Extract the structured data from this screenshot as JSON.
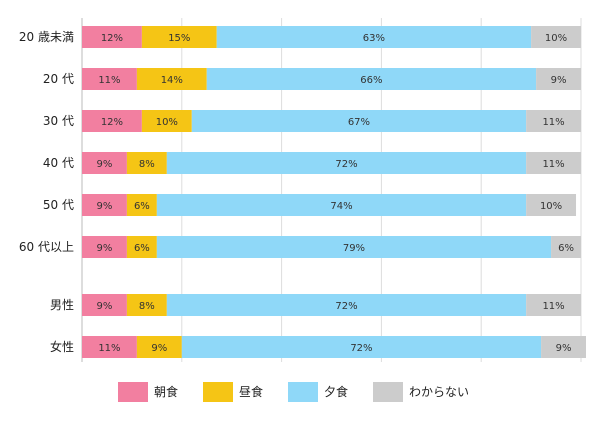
{
  "chart_data": {
    "type": "bar",
    "orientation": "horizontal",
    "stacked": true,
    "percent_stacked": true,
    "groups": [
      {
        "categories": [
          "20 歳未満",
          "20 代",
          "30 代",
          "40 代",
          "50 代",
          "60 代以上"
        ]
      },
      {
        "categories": [
          "男性",
          "女性"
        ]
      }
    ],
    "series": [
      {
        "name": "朝食",
        "color": "#f27fa0",
        "values": [
          12,
          11,
          12,
          9,
          9,
          9,
          9,
          11
        ],
        "labels": [
          "12%",
          "11%",
          "12%",
          "9%",
          "9%",
          "9%",
          "9%",
          "11%"
        ]
      },
      {
        "name": "昼食",
        "color": "#f5c515",
        "values": [
          15,
          14,
          10,
          8,
          6,
          6,
          8,
          9
        ],
        "labels": [
          "15%",
          "14%",
          "10%",
          "8%",
          "6%",
          "6%",
          "8%",
          "9%"
        ]
      },
      {
        "name": "夕食",
        "color": "#8fd8f8",
        "values": [
          63,
          66,
          67,
          72,
          74,
          79,
          72,
          72
        ],
        "labels": [
          "63%",
          "66%",
          "67%",
          "72%",
          "74%",
          "79%",
          "72%",
          "72%"
        ]
      },
      {
        "name": "わからない",
        "color": "#cccccc",
        "values": [
          10,
          9,
          11,
          11,
          10,
          6,
          11,
          9
        ],
        "labels": [
          "10%",
          "9%",
          "11%",
          "11%",
          "10%",
          "6%",
          "11%",
          "9%"
        ]
      }
    ],
    "xlim": [
      0,
      100
    ],
    "grid": true,
    "legend_position": "bottom"
  }
}
